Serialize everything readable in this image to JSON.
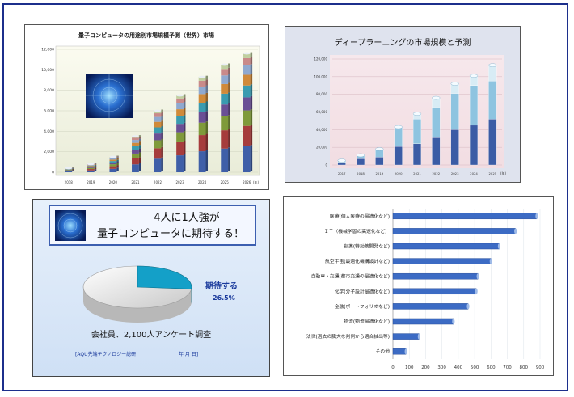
{
  "colors": {
    "frame": "#1c2f8c",
    "accent_blue": "#3c5fb0",
    "teal": "#14a0c8"
  },
  "chart1": {
    "type": "bar-stacked",
    "title": "量子コンピュータの用途別市場規模予測（世界）市場",
    "categories": [
      "2018",
      "2019",
      "2020",
      "2021",
      "2022",
      "2023",
      "2024",
      "2025",
      "2026"
    ],
    "unit_label": "(年)",
    "yticks": [
      "0",
      "2,000",
      "4,000",
      "6,000",
      "8,000",
      "10,000",
      "12,000"
    ],
    "ylim": [
      0,
      12000
    ],
    "totals": [
      400,
      800,
      1500,
      3500,
      6000,
      7500,
      9300,
      10500,
      11600
    ],
    "segment_shares": [
      0.22,
      0.17,
      0.13,
      0.11,
      0.1,
      0.09,
      0.08,
      0.06,
      0.04
    ],
    "segment_colors": [
      "#3f5fa8",
      "#a63c3c",
      "#7f9a3a",
      "#6a4f95",
      "#3a9bb0",
      "#d08a3a",
      "#8fa9d0",
      "#c98a8a",
      "#c0cfa0"
    ]
  },
  "chart2": {
    "type": "bar-stacked",
    "title": "ディープラーニングの市場規模と予測",
    "categories": [
      "2017",
      "2018",
      "2019",
      "2020",
      "2021",
      "2022",
      "2023",
      "2024",
      "2025"
    ],
    "unit_label": "(年)",
    "yticks": [
      "0",
      "20,000",
      "40,000",
      "60,000",
      "80,000",
      "100,000",
      "120,000"
    ],
    "ylim": [
      0,
      120000
    ],
    "series": [
      {
        "values": [
          3000,
          7000,
          9000,
          21000,
          24000,
          31000,
          40000,
          45000,
          52000
        ],
        "color": "#3b5ca5"
      },
      {
        "values": [
          2000,
          4000,
          9000,
          22000,
          28000,
          34000,
          41000,
          45000,
          43000
        ],
        "color": "#8ec4e0"
      },
      {
        "values": [
          0,
          0,
          0,
          0,
          6000,
          11000,
          11000,
          11000,
          18000
        ],
        "color": "#d8ecf5"
      }
    ]
  },
  "survey": {
    "headline_line1": "4人に1人強が",
    "headline_line2": "量子コンピュータに期待する！",
    "pie_label": "期待する",
    "pie_value_label": "26.5%",
    "pie_value": 26.5,
    "footnote": "会社員、2,100人アンケート調査",
    "source_prefix": "[AQU先端テクノロジー総研",
    "source_suffix": "年 月 日]"
  },
  "chart3": {
    "type": "bar",
    "orientation": "horizontal",
    "categories": [
      "医療(個人医療の最適化など)",
      "ＩＴ（機械学習の高速化など）",
      "創薬(特効薬開発など)",
      "航空宇宙(最適化機構設計など)",
      "自動車・交通(都市交通の最適化など)",
      "化学(分子設計最適化など)",
      "金融(ポートフォリオなど)",
      "物流(物流最適化など)",
      "法律(過去の膨大な判例から適合抽出等)",
      "その他"
    ],
    "values": [
      880,
      750,
      650,
      600,
      520,
      510,
      460,
      370,
      160,
      80
    ],
    "xticks": [
      "0",
      "100",
      "200",
      "300",
      "400",
      "500",
      "600",
      "700",
      "800",
      "900"
    ],
    "xlim": [
      0,
      900
    ]
  }
}
